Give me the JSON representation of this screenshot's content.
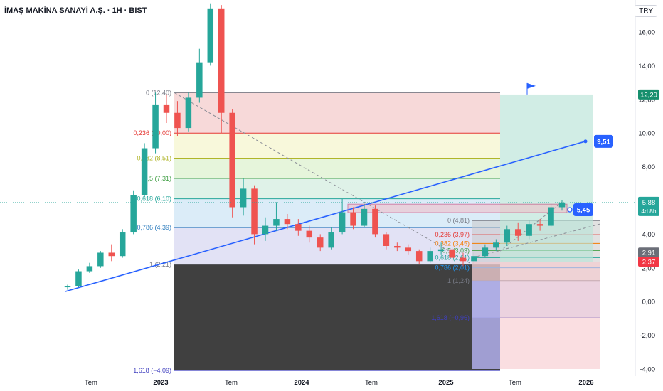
{
  "header": {
    "title": "İMAŞ MAKİNA SANAYİ A.Ş. · 1H · BIST",
    "currency": "TRY"
  },
  "chart_data": {
    "type": "candlestick",
    "x_tick_labels": [
      "Tem",
      "2023",
      "Tem",
      "2024",
      "Tem",
      "2025",
      "Tem",
      "2026"
    ],
    "y_tick_labels": [
      "16,00",
      "14,00",
      "12,00",
      "10,00",
      "8,00",
      "6,00",
      "4,00",
      "2,00",
      "0,00",
      "-2,00",
      "-4,00"
    ],
    "y_ticks": [
      16,
      14,
      12,
      10,
      8,
      6,
      4,
      2,
      0,
      -2,
      -4
    ],
    "ylim": [
      -4.3,
      17.9
    ],
    "grid": false,
    "candles": [
      {
        "t": "2022-06",
        "o": 0.85,
        "h": 1.0,
        "l": 0.7,
        "c": 0.9
      },
      {
        "t": "2022-07",
        "o": 0.9,
        "h": 1.9,
        "l": 0.85,
        "c": 1.8
      },
      {
        "t": "2022-08",
        "o": 1.8,
        "h": 2.3,
        "l": 1.7,
        "c": 2.1
      },
      {
        "t": "2022-09",
        "o": 2.1,
        "h": 3.0,
        "l": 2.0,
        "c": 2.9
      },
      {
        "t": "2022-10",
        "o": 2.9,
        "h": 3.4,
        "l": 2.4,
        "c": 2.7
      },
      {
        "t": "2022-11",
        "o": 2.7,
        "h": 4.3,
        "l": 2.6,
        "c": 4.1
      },
      {
        "t": "2022-12a",
        "o": 4.1,
        "h": 6.6,
        "l": 4.0,
        "c": 6.3
      },
      {
        "t": "2022-12b",
        "o": 6.3,
        "h": 9.4,
        "l": 6.2,
        "c": 9.1
      },
      {
        "t": "2023-01a",
        "o": 9.1,
        "h": 12.4,
        "l": 8.8,
        "c": 11.7
      },
      {
        "t": "2023-01b",
        "o": 11.7,
        "h": 12.3,
        "l": 10.6,
        "c": 11.2
      },
      {
        "t": "2023-02",
        "o": 11.2,
        "h": 11.9,
        "l": 9.8,
        "c": 10.3
      },
      {
        "t": "2023-03",
        "o": 10.3,
        "h": 12.4,
        "l": 10.1,
        "c": 12.1
      },
      {
        "t": "2023-04a",
        "o": 12.1,
        "h": 15.0,
        "l": 11.8,
        "c": 14.2
      },
      {
        "t": "2023-04b",
        "o": 14.2,
        "h": 17.7,
        "l": 14.0,
        "c": 17.4
      },
      {
        "t": "2023-05",
        "o": 17.4,
        "h": 17.6,
        "l": 10.0,
        "c": 11.2
      },
      {
        "t": "2023-06",
        "o": 11.2,
        "h": 11.4,
        "l": 5.0,
        "c": 5.6
      },
      {
        "t": "2023-07",
        "o": 5.6,
        "h": 7.3,
        "l": 5.1,
        "c": 6.7
      },
      {
        "t": "2023-08",
        "o": 6.7,
        "h": 6.9,
        "l": 3.4,
        "c": 4.0
      },
      {
        "t": "2023-09",
        "o": 4.0,
        "h": 5.0,
        "l": 3.6,
        "c": 4.5
      },
      {
        "t": "2023-10",
        "o": 4.5,
        "h": 5.9,
        "l": 4.2,
        "c": 4.9
      },
      {
        "t": "2023-11",
        "o": 4.9,
        "h": 5.2,
        "l": 4.3,
        "c": 4.6
      },
      {
        "t": "2023-12",
        "o": 4.6,
        "h": 4.9,
        "l": 3.9,
        "c": 4.2
      },
      {
        "t": "2024-01",
        "o": 4.2,
        "h": 4.5,
        "l": 3.5,
        "c": 3.8
      },
      {
        "t": "2024-02",
        "o": 3.8,
        "h": 4.0,
        "l": 3.0,
        "c": 3.2
      },
      {
        "t": "2024-03",
        "o": 3.2,
        "h": 4.4,
        "l": 3.1,
        "c": 4.1
      },
      {
        "t": "2024-04",
        "o": 4.1,
        "h": 6.1,
        "l": 4.0,
        "c": 5.3
      },
      {
        "t": "2024-05",
        "o": 5.3,
        "h": 5.6,
        "l": 4.3,
        "c": 4.5
      },
      {
        "t": "2024-06",
        "o": 4.5,
        "h": 5.8,
        "l": 4.4,
        "c": 5.5
      },
      {
        "t": "2024-07",
        "o": 5.5,
        "h": 5.7,
        "l": 3.8,
        "c": 4.0
      },
      {
        "t": "2024-08",
        "o": 4.0,
        "h": 4.1,
        "l": 3.1,
        "c": 3.3
      },
      {
        "t": "2024-09",
        "o": 3.3,
        "h": 3.5,
        "l": 3.0,
        "c": 3.2
      },
      {
        "t": "2024-10",
        "o": 3.2,
        "h": 3.4,
        "l": 2.8,
        "c": 3.0
      },
      {
        "t": "2024-11",
        "o": 3.0,
        "h": 3.1,
        "l": 2.2,
        "c": 2.4
      },
      {
        "t": "2024-12",
        "o": 2.4,
        "h": 3.2,
        "l": 2.3,
        "c": 3.0
      },
      {
        "t": "2025-01",
        "o": 3.0,
        "h": 3.5,
        "l": 2.8,
        "c": 3.1
      },
      {
        "t": "2025-02",
        "o": 3.1,
        "h": 3.2,
        "l": 2.4,
        "c": 2.6
      },
      {
        "t": "2025-03",
        "o": 2.6,
        "h": 2.9,
        "l": 2.1,
        "c": 2.4
      },
      {
        "t": "2025-04",
        "o": 2.4,
        "h": 2.9,
        "l": 2.2,
        "c": 2.7
      },
      {
        "t": "2025-05",
        "o": 2.7,
        "h": 3.4,
        "l": 2.6,
        "c": 3.2
      },
      {
        "t": "2025-06",
        "o": 3.2,
        "h": 3.7,
        "l": 3.0,
        "c": 3.5
      },
      {
        "t": "2025-07",
        "o": 3.5,
        "h": 4.5,
        "l": 3.3,
        "c": 4.3
      },
      {
        "t": "2025-08",
        "o": 4.3,
        "h": 4.7,
        "l": 3.6,
        "c": 3.9
      },
      {
        "t": "2025-09",
        "o": 3.9,
        "h": 4.8,
        "l": 3.7,
        "c": 4.6
      },
      {
        "t": "2025-10",
        "o": 4.6,
        "h": 4.9,
        "l": 4.2,
        "c": 4.5
      },
      {
        "t": "2025-11a",
        "o": 4.5,
        "h": 5.8,
        "l": 4.4,
        "c": 5.6
      },
      {
        "t": "2025-11b",
        "o": 5.6,
        "h": 6.0,
        "l": 5.4,
        "c": 5.88
      }
    ],
    "fib_left": {
      "band_colors": [
        "#f4cccc",
        "#f6f6cf",
        "#ddf2cf",
        "#d4eee0",
        "#cfe6f5",
        "#d8d8f2"
      ],
      "levels": [
        {
          "ratio": "0",
          "price": 12.4,
          "label": "0 (12,40)",
          "color": "#787b86"
        },
        {
          "ratio": "0.236",
          "price": 10.0,
          "label": "0,236 (10,00)",
          "color": "#e53935"
        },
        {
          "ratio": "0.382",
          "price": 8.51,
          "label": "0,382 (8,51)",
          "color": "#b0b52a"
        },
        {
          "ratio": "0.5",
          "price": 7.31,
          "label": "0,5 (7,31)",
          "color": "#43a047"
        },
        {
          "ratio": "0.618",
          "price": 6.1,
          "label": "0,618 (6,10)",
          "color": "#26a69a"
        },
        {
          "ratio": "0.786",
          "price": 4.39,
          "label": "0,786 (4,39)",
          "color": "#2e7dbe"
        },
        {
          "ratio": "1",
          "price": 2.21,
          "label": "1 (2,21)",
          "color": "#787b86"
        },
        {
          "ratio": "1.618",
          "price": -4.09,
          "label": "1,618 (−4,09)",
          "color": "#3f3fbf"
        }
      ]
    },
    "fib_right": {
      "levels": [
        {
          "ratio": "0",
          "price": 4.81,
          "label": "0 (4,81)",
          "color": "#787b86"
        },
        {
          "ratio": "0.236",
          "price": 3.97,
          "label": "0,236 (3,97)",
          "color": "#e53935"
        },
        {
          "ratio": "0.382",
          "price": 3.45,
          "label": "0,382 (3,45)",
          "color": "#f57c00"
        },
        {
          "ratio": "0.5",
          "price": 3.03,
          "label": "0,5 (3,03)",
          "color": "#43a047"
        },
        {
          "ratio": "0.618",
          "price": 2.61,
          "label": "0,618 (2,61)",
          "color": "#26a69a"
        },
        {
          "ratio": "0.786",
          "price": 2.01,
          "label": "0,786 (2,01)",
          "color": "#2196f3"
        },
        {
          "ratio": "1",
          "price": 1.24,
          "label": "1 (1,24)",
          "color": "#787b86"
        },
        {
          "ratio": "1.618",
          "price": -0.96,
          "label": "1,618 (−0,96)",
          "color": "#3f3fbf"
        }
      ]
    },
    "trendline_price_start": 0.6,
    "trendline_price_end": 9.51,
    "target_label": "9,51",
    "current_marker_label": "5,45",
    "price_labels": {
      "last_price": "5,88",
      "countdown": "4d 8h",
      "upper_target": "12,29",
      "level_a": "2,91",
      "level_b": "2,37"
    },
    "colors": {
      "up": "#26a69a",
      "down": "#ef5350",
      "trend": "#2962ff",
      "target_bg": "#2962ff",
      "last_bg": "#26a69a",
      "level_a_bg": "#6b6e78",
      "level_b_bg": "#f23645",
      "upper_target_bg": "#168f6d"
    }
  }
}
